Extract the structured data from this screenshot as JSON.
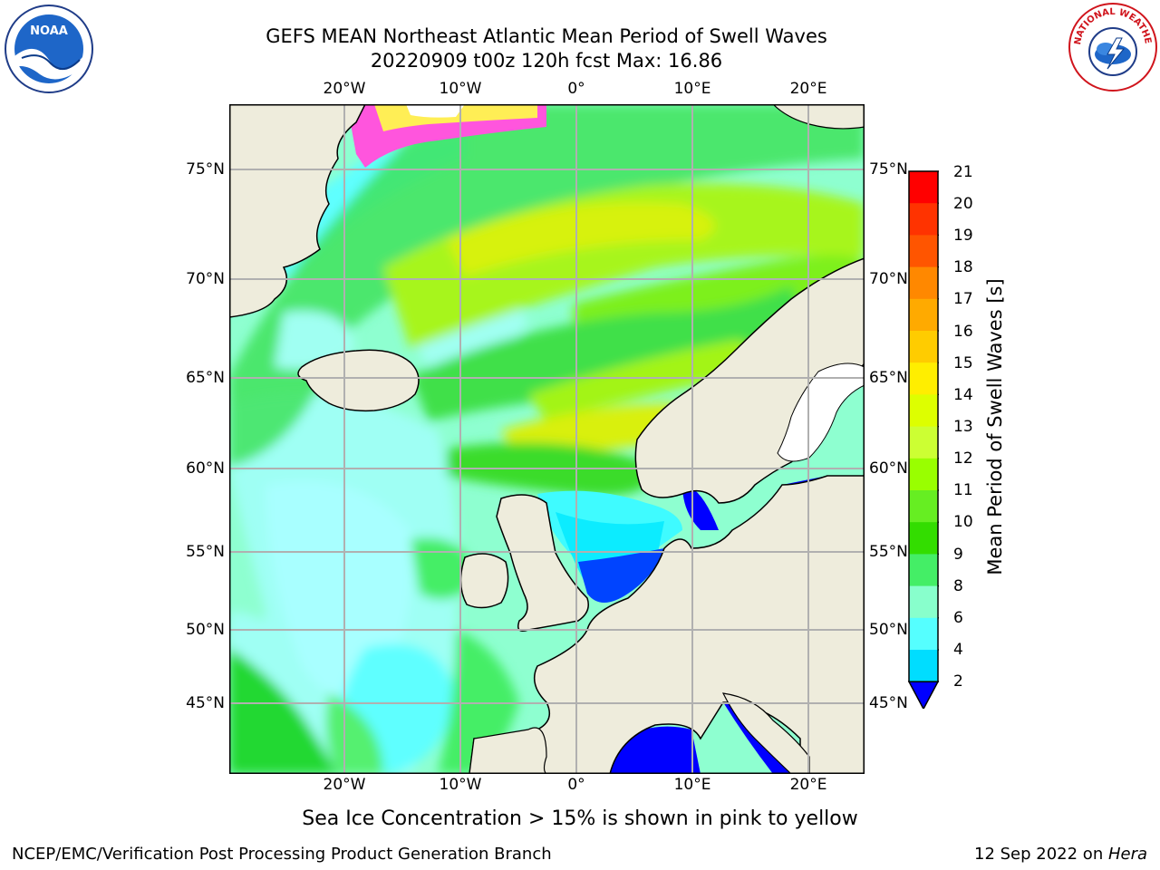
{
  "title_line1": "GEFS MEAN Northeast Atlantic Mean Period of Swell Waves",
  "title_line2": "20220909 t00z 120h fcst   Max: 16.86",
  "lon_ticks_top": [
    "20°W",
    "10°W",
    "0°",
    "10°E",
    "20°E"
  ],
  "lon_ticks_bottom": [
    "20°W",
    "10°W",
    "0°",
    "10°E",
    "20°E"
  ],
  "lat_ticks_left": [
    "75°N",
    "70°N",
    "65°N",
    "60°N",
    "55°N",
    "50°N",
    "45°N"
  ],
  "lat_ticks_right": [
    "75°N",
    "70°N",
    "65°N",
    "60°N",
    "55°N",
    "50°N",
    "45°N"
  ],
  "colorbar": {
    "label": "Mean Period of Swell Waves [s]",
    "ticks": [
      "21",
      "20",
      "19",
      "18",
      "17",
      "16",
      "15",
      "14",
      "13",
      "12",
      "11",
      "10",
      "9",
      "8",
      "6",
      "4",
      "2"
    ],
    "colors": [
      "#ff0000",
      "#ff3300",
      "#ff5500",
      "#ff8800",
      "#ffaa00",
      "#ffcc00",
      "#ffee00",
      "#ddff00",
      "#ccff33",
      "#99ff00",
      "#66ee22",
      "#33dd00",
      "#44ee66",
      "#88ffcc",
      "#55ffff",
      "#00ddff",
      "#0077ff"
    ],
    "extend_color": "#0000ff"
  },
  "note": "Sea Ice Concentration > 15% is shown in pink to yellow",
  "footer_left": "NCEP/EMC/Verification Post Processing Product Generation Branch",
  "footer_right_prefix": "12 Sep 2022 on ",
  "footer_right_host": "Hera",
  "logo_left": {
    "icon": "noaa-logo-icon",
    "text": "NOAA"
  },
  "logo_right": {
    "icon": "nws-logo-icon",
    "text": "NATIONAL WEATHER SERVICE"
  }
}
